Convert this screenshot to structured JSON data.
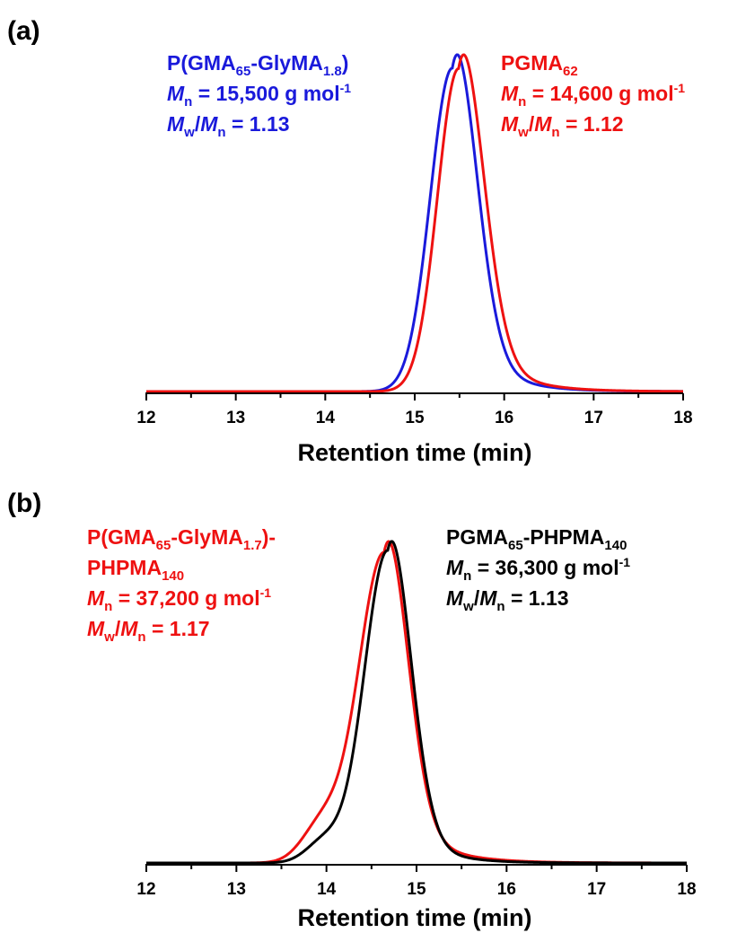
{
  "chart_data": [
    {
      "panel": "(a)",
      "type": "line",
      "xlabel": "Retention time (min)",
      "ylabel": "",
      "xlim": [
        12,
        18
      ],
      "xticks": [
        "12",
        "13",
        "14",
        "15",
        "16",
        "17",
        "18"
      ],
      "grid": false,
      "series": [
        {
          "name": "P(GMA65-GlyMA1.8)",
          "color": "#1a1adb",
          "peak": 15.42,
          "sigma_left": 0.245,
          "sigma_right": 0.26,
          "tail_amp": 0.24,
          "tail_tau": 0.38
        },
        {
          "name": "PGMA62",
          "color": "#ee1111",
          "peak": 15.49,
          "sigma_left": 0.235,
          "sigma_right": 0.265,
          "tail_amp": 0.24,
          "tail_tau": 0.4
        }
      ],
      "annotations": [
        {
          "color": "#1a1adb",
          "lines": [
            [
              {
                "t": "P(GMA"
              },
              {
                "t": "65",
                "s": "sub"
              },
              {
                "t": "-GlyMA"
              },
              {
                "t": "1.8",
                "s": "sub"
              },
              {
                "t": ")"
              }
            ],
            [
              {
                "t": "M",
                "i": true
              },
              {
                "t": "n",
                "s": "sub"
              },
              {
                "t": " = 15,500 g mol"
              },
              {
                "t": "-1",
                "s": "sup"
              }
            ],
            [
              {
                "t": "M",
                "i": true
              },
              {
                "t": "w",
                "s": "sub"
              },
              {
                "t": "/"
              },
              {
                "t": "M",
                "i": true
              },
              {
                "t": "n",
                "s": "sub"
              },
              {
                "t": " = 1.13"
              }
            ]
          ]
        },
        {
          "color": "#ee1111",
          "lines": [
            [
              {
                "t": "PGMA"
              },
              {
                "t": "62",
                "s": "sub"
              }
            ],
            [
              {
                "t": "M",
                "i": true
              },
              {
                "t": "n",
                "s": "sub"
              },
              {
                "t": " = 14,600 g mol"
              },
              {
                "t": "-1",
                "s": "sup"
              }
            ],
            [
              {
                "t": "M",
                "i": true
              },
              {
                "t": "w",
                "s": "sub"
              },
              {
                "t": "/"
              },
              {
                "t": "M",
                "i": true
              },
              {
                "t": "n",
                "s": "sub"
              },
              {
                "t": " = 1.12"
              }
            ]
          ]
        }
      ]
    },
    {
      "panel": "(b)",
      "type": "line",
      "xlabel": "Retention time (min)",
      "ylabel": "",
      "xlim": [
        12,
        18
      ],
      "xticks": [
        "12",
        "13",
        "14",
        "15",
        "16",
        "17",
        "18"
      ],
      "grid": false,
      "series": [
        {
          "name": "P(GMA65-GlyMA1.7)-PHPMA140",
          "color": "#ee1111",
          "peak": 14.64,
          "sigma_left": 0.285,
          "sigma_right": 0.25,
          "tail_amp": 0.22,
          "tail_tau": 0.42,
          "shoulder": {
            "center": 13.95,
            "sigma": 0.22,
            "amp": 0.12
          }
        },
        {
          "name": "PGMA65-PHPMA140",
          "color": "#000000",
          "peak": 14.68,
          "sigma_left": 0.26,
          "sigma_right": 0.245,
          "tail_amp": 0.2,
          "tail_tau": 0.35,
          "shoulder": {
            "center": 13.98,
            "sigma": 0.2,
            "amp": 0.07
          }
        }
      ],
      "annotations": [
        {
          "color": "#ee1111",
          "lines": [
            [
              {
                "t": "P(GMA"
              },
              {
                "t": "65",
                "s": "sub"
              },
              {
                "t": "-GlyMA"
              },
              {
                "t": "1.7",
                "s": "sub"
              },
              {
                "t": ")-"
              }
            ],
            [
              {
                "t": "PHPMA"
              },
              {
                "t": "140",
                "s": "sub"
              }
            ],
            [
              {
                "t": "M",
                "i": true
              },
              {
                "t": "n",
                "s": "sub"
              },
              {
                "t": " = 37,200 g mol"
              },
              {
                "t": "-1",
                "s": "sup"
              }
            ],
            [
              {
                "t": "M",
                "i": true
              },
              {
                "t": "w",
                "s": "sub"
              },
              {
                "t": "/"
              },
              {
                "t": "M",
                "i": true
              },
              {
                "t": "n",
                "s": "sub"
              },
              {
                "t": " = 1.17"
              }
            ]
          ]
        },
        {
          "color": "#000000",
          "lines": [
            [
              {
                "t": "PGMA"
              },
              {
                "t": "65",
                "s": "sub"
              },
              {
                "t": "-PHPMA"
              },
              {
                "t": "140",
                "s": "sub"
              }
            ],
            [
              {
                "t": "M",
                "i": true
              },
              {
                "t": "n",
                "s": "sub"
              },
              {
                "t": " = 36,300 g mol"
              },
              {
                "t": "-1",
                "s": "sup"
              }
            ],
            [
              {
                "t": "M",
                "i": true
              },
              {
                "t": "w",
                "s": "sub"
              },
              {
                "t": "/"
              },
              {
                "t": "M",
                "i": true
              },
              {
                "t": "n",
                "s": "sub"
              },
              {
                "t": " = 1.13"
              }
            ]
          ]
        }
      ]
    }
  ]
}
